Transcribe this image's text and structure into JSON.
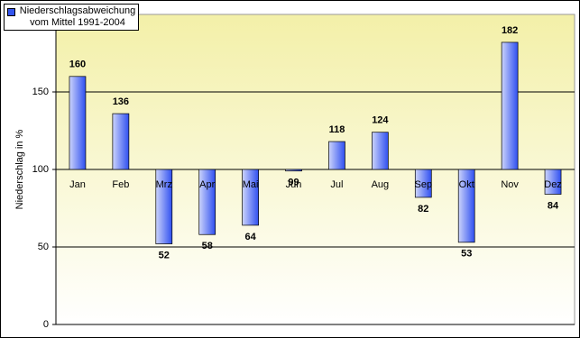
{
  "chart_data": {
    "type": "bar",
    "y_label": "Niederschlag in %",
    "categories": [
      "Jan",
      "Feb",
      "Mrz",
      "Apr",
      "Mai",
      "Jun",
      "Jul",
      "Aug",
      "Sep",
      "Okt",
      "Nov",
      "Dez"
    ],
    "series": [
      {
        "name": "Niederschlagsabweichung vom Mittel 1991-2004",
        "color": "#3355ee",
        "values": [
          160,
          136,
          52,
          58,
          64,
          99,
          118,
          124,
          82,
          53,
          182,
          84
        ]
      }
    ],
    "baseline": 100,
    "ylim": [
      0,
      200
    ],
    "yticks": [
      0,
      50,
      100,
      150
    ],
    "grid": true
  }
}
